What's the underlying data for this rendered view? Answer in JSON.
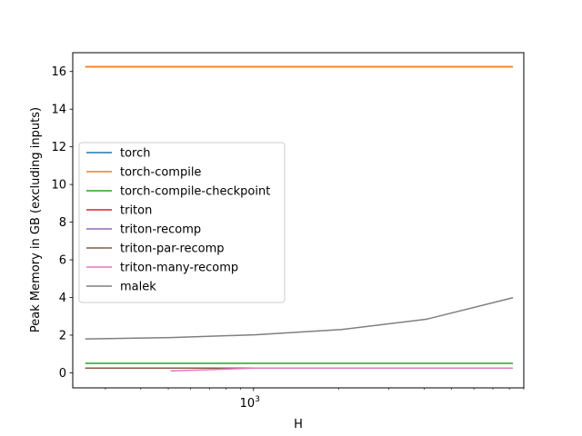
{
  "chart_data": {
    "type": "line",
    "xlabel": "H",
    "ylabel": "Peak Memory in GB (excluding inputs)",
    "xscale": "log",
    "xlim": [
      230,
      9000
    ],
    "ylim": [
      -0.8,
      17
    ],
    "x_major_ticks": [
      1000
    ],
    "x_major_tick_labels": [
      "10^3"
    ],
    "x_minor_ticks": [
      300,
      400,
      500,
      600,
      700,
      800,
      900,
      2000,
      3000,
      4000,
      5000,
      6000,
      7000,
      8000,
      9000
    ],
    "y_ticks": [
      0,
      2,
      4,
      6,
      8,
      10,
      12,
      14,
      16
    ],
    "y_tick_labels": [
      "0",
      "2",
      "4",
      "6",
      "8",
      "10",
      "12",
      "14",
      "16"
    ],
    "grid": false,
    "legend_position": "center-left",
    "series": [
      {
        "name": "torch",
        "color": "#1f77b4",
        "x": [
          256,
          512,
          1024,
          2048,
          4096,
          8192
        ],
        "y": [
          16.25,
          16.25,
          16.25,
          16.25,
          16.25,
          16.25
        ]
      },
      {
        "name": "torch-compile",
        "color": "#ff7f0e",
        "x": [
          256,
          512,
          1024,
          2048,
          4096,
          8192
        ],
        "y": [
          16.25,
          16.25,
          16.25,
          16.25,
          16.25,
          16.25
        ]
      },
      {
        "name": "torch-compile-checkpoint",
        "color": "#2ca02c",
        "x": [
          256,
          512,
          1024,
          2048,
          4096,
          8192
        ],
        "y": [
          0.5,
          0.5,
          0.5,
          0.5,
          0.5,
          0.5
        ]
      },
      {
        "name": "triton",
        "color": "#d62728",
        "x": [
          256,
          512,
          1024,
          2048,
          4096,
          8192
        ],
        "y": [
          0.25,
          0.25,
          0.25,
          0.25,
          0.25,
          0.25
        ]
      },
      {
        "name": "triton-recomp",
        "color": "#9467bd",
        "x": [
          256,
          512,
          1024,
          2048,
          4096,
          8192
        ],
        "y": [
          0.25,
          0.25,
          0.25,
          0.25,
          0.25,
          0.25
        ]
      },
      {
        "name": "triton-par-recomp",
        "color": "#8c564b",
        "x": [
          256,
          512,
          1024,
          2048,
          4096,
          8192
        ],
        "y": [
          0.25,
          0.25,
          0.25,
          0.25,
          0.25,
          0.25
        ]
      },
      {
        "name": "triton-many-recomp",
        "color": "#e377c2",
        "x": [
          512,
          1024,
          2048,
          4096,
          8192
        ],
        "y": [
          0.1,
          0.25,
          0.25,
          0.25,
          0.25
        ]
      },
      {
        "name": "malek",
        "color": "#7f7f7f",
        "x": [
          256,
          512,
          1024,
          2048,
          4096,
          8192
        ],
        "y": [
          1.8,
          1.87,
          2.02,
          2.3,
          2.85,
          3.98
        ]
      }
    ]
  }
}
